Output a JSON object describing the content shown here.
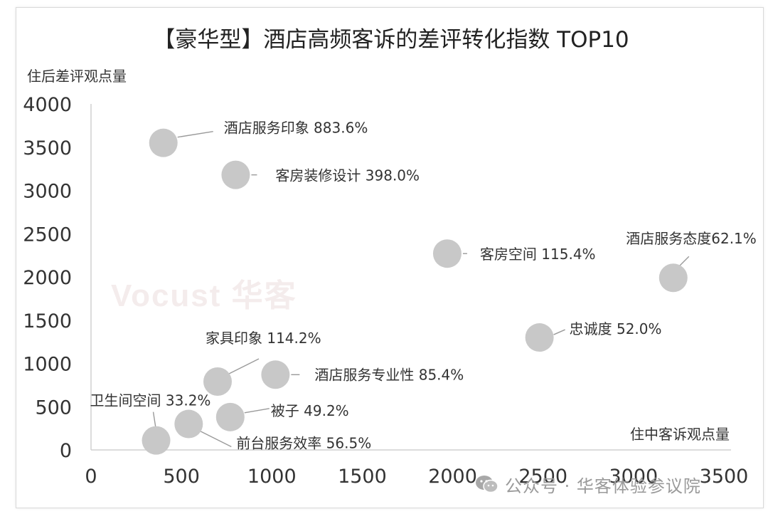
{
  "chart_data": {
    "type": "scatter",
    "title": "【豪华型】酒店高频客诉的差评转化指数 TOP10",
    "xlabel": "住中客诉观点量",
    "ylabel": "住后差评观点量",
    "xlim": [
      0,
      3500
    ],
    "ylim": [
      0,
      4000
    ],
    "xticks": [
      "0",
      "500",
      "1000",
      "1500",
      "2000",
      "2500",
      "3000",
      "3500"
    ],
    "yticks": [
      "0",
      "500",
      "1000",
      "1500",
      "2000",
      "2500",
      "3000",
      "3500",
      "4000"
    ],
    "grid": false,
    "points": [
      {
        "label": "酒店服务印象 883.6%",
        "x": 400,
        "y": 3550
      },
      {
        "label": "客房装修设计 398.0%",
        "x": 800,
        "y": 3180
      },
      {
        "label": "客房空间 115.4%",
        "x": 1970,
        "y": 2270
      },
      {
        "label": "酒店服务态度62.1%",
        "x": 3220,
        "y": 1990
      },
      {
        "label": "忠诚度 52.0%",
        "x": 2480,
        "y": 1300
      },
      {
        "label": "家具印象 114.2%",
        "x": 700,
        "y": 790
      },
      {
        "label": "酒店服务专业性 85.4%",
        "x": 1020,
        "y": 870
      },
      {
        "label": "被子 49.2%",
        "x": 770,
        "y": 380
      },
      {
        "label": "卫生间空间 33.2%",
        "x": 360,
        "y": 110
      },
      {
        "label": "前台服务效率 56.5%",
        "x": 540,
        "y": 300
      }
    ],
    "marker_color": "#c8c8c8"
  },
  "watermark": {
    "logo_text": "Vocust 华客",
    "footer_text": "公众号 · 华客体验参议院",
    "wechat_icon": "wechat-icon"
  }
}
